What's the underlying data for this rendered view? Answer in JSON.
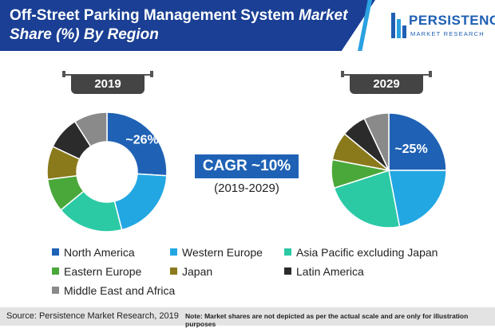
{
  "header": {
    "title_line1": "Off-Street Parking Management System",
    "title_italic1": "Market",
    "title_italic2": "Share (%) By Region"
  },
  "logo": {
    "main": "PERSISTENCE",
    "sub": "MARKET RESEARCH"
  },
  "cagr": {
    "label": "CAGR ~10%",
    "years": "(2019-2029)"
  },
  "footer": {
    "source": "Source: Persistence Market Research, 2019",
    "note": "Note: Market shares are not depicted as per the actual scale and are only for illustration purposes"
  },
  "colors": {
    "north_america": "#1f62b5",
    "western_europe": "#22a7e3",
    "asia_pacific": "#2cc9a5",
    "eastern_europe": "#4aa83a",
    "japan": "#8a7a1c",
    "latin_america": "#2b2b2b",
    "middle_east_africa": "#8a8a8a"
  },
  "chart_data": [
    {
      "type": "pie",
      "variant": "donut",
      "year": "2019",
      "categories": [
        "North America",
        "Western Europe",
        "Asia Pacific excluding Japan",
        "Eastern Europe",
        "Japan",
        "Latin America",
        "Middle East and Africa"
      ],
      "values": [
        26,
        20,
        18,
        9,
        9,
        9,
        9
      ],
      "labels": [
        "~26%",
        "",
        "",
        "",
        "",
        "",
        ""
      ]
    },
    {
      "type": "pie",
      "year": "2029",
      "categories": [
        "North America",
        "Western Europe",
        "Asia Pacific excluding Japan",
        "Eastern Europe",
        "Japan",
        "Latin America",
        "Middle East and Africa"
      ],
      "values": [
        25,
        22,
        23,
        8,
        8,
        7,
        7
      ],
      "labels": [
        "~25%",
        "",
        "",
        "",
        "",
        "",
        ""
      ]
    }
  ],
  "legend": [
    {
      "label": "North America",
      "color": "#1f62b5"
    },
    {
      "label": "Western Europe",
      "color": "#22a7e3"
    },
    {
      "label": "Asia Pacific excluding Japan",
      "color": "#2cc9a5"
    },
    {
      "label": "Eastern Europe",
      "color": "#4aa83a"
    },
    {
      "label": "Japan",
      "color": "#8a7a1c"
    },
    {
      "label": "Latin America",
      "color": "#2b2b2b"
    },
    {
      "label": "Middle East and Africa",
      "color": "#8a8a8a"
    }
  ]
}
